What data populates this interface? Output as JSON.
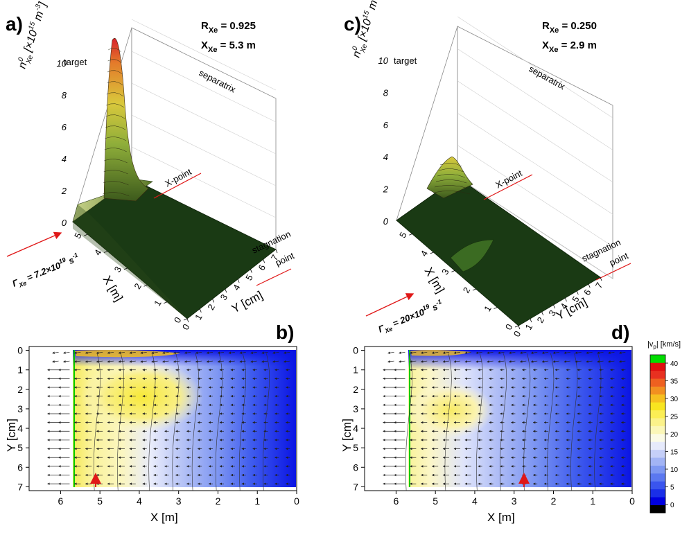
{
  "panels": {
    "a": {
      "label": "a)",
      "zlabel": "n",
      "zlabel_sup": "0",
      "zlabel_sub": "Xe",
      "zlabel_unit": "[×10",
      "zlabel_unit_sup": "15",
      "zlabel_unit2": " m",
      "zlabel_unit_sup2": "-3",
      "zlabel_unit3": "]",
      "param1_name": "R",
      "param1_sub": "Xe",
      "param1_val": " = 0.925",
      "param2_name": "X",
      "param2_sub": "Xe",
      "param2_val": " = 5.3 m",
      "flux_pre": "Γ",
      "flux_sub": "Xe",
      "flux_mid": " = 7.2×10",
      "flux_sup": "19",
      "flux_unit": " s",
      "flux_unit_sup": "-1",
      "target": "target",
      "separatrix": "separatrix",
      "xpoint": "X-point",
      "stag1": "stagnation",
      "stag2": "point",
      "xlabel": "X [m]",
      "ylabel": "Y [cm]"
    },
    "c": {
      "label": "c)",
      "zlabel": "n",
      "zlabel_sup": "0",
      "zlabel_sub": "Xe",
      "zlabel_unit": "[×10",
      "zlabel_unit_sup": "15",
      "zlabel_unit2": " m",
      "zlabel_unit_sup2": "-3",
      "zlabel_unit3": "]",
      "param1_name": "R",
      "param1_sub": "Xe",
      "param1_val": " = 0.250",
      "param2_name": "X",
      "param2_sub": "Xe",
      "param2_val": " = 2.9 m",
      "flux_pre": "Γ",
      "flux_sub": "Xe",
      "flux_mid": " = 20×10",
      "flux_sup": "19",
      "flux_unit": " s",
      "flux_unit_sup": "-1",
      "target": "target",
      "separatrix": "separatrix",
      "xpoint": "X-point",
      "stag1": "stagnation",
      "stag2": "point",
      "xlabel": "X [m]",
      "ylabel": "Y [cm]"
    },
    "b": {
      "label": "b)",
      "xlabel": "X [m]",
      "ylabel": "Y [cm]"
    },
    "d": {
      "label": "d)",
      "xlabel": "X [m]",
      "ylabel": "Y [cm]"
    }
  },
  "colorbar": {
    "title": "|v",
    "title_sub": "p",
    "title_end": "| [km/s]",
    "ticks": [
      "0",
      "5",
      "10",
      "15",
      "20",
      "25",
      "30",
      "35",
      "40"
    ],
    "levels": [
      "#000000",
      "#0000e0",
      "#1a2fe8",
      "#3a55ee",
      "#5b78f0",
      "#7e98f2",
      "#a2b4f5",
      "#c5cff8",
      "#e6eafb",
      "#fbfbe6",
      "#fbf7b8",
      "#fbf28a",
      "#fbee55",
      "#f8e520",
      "#f6c020",
      "#f29020",
      "#ee6020",
      "#e83020",
      "#e01010",
      "#00dd00"
    ]
  },
  "chart_data": [
    {
      "type": "surface3d",
      "panel": "a",
      "zlabel": "n_Xe^0 [×10^15 m^-3]",
      "zlim": [
        0,
        10
      ],
      "zticks": [
        0,
        2,
        4,
        6,
        8,
        10
      ],
      "xlabel": "X [m]",
      "xticks": [
        0,
        1,
        2,
        3,
        4,
        5
      ],
      "ylabel": "Y [cm]",
      "yticks": [
        0,
        1,
        2,
        3,
        4,
        5,
        6,
        7
      ],
      "peak": {
        "x": 5.9,
        "y": 0.2,
        "z": 9.5
      },
      "R_Xe": 0.925,
      "X_Xe_m": 5.3,
      "Gamma_Xe_1e19_per_s": 7.2
    },
    {
      "type": "surface3d",
      "panel": "c",
      "zlabel": "n_Xe^0 [×10^15 m^-3]",
      "zlim": [
        0,
        10
      ],
      "zticks": [
        0,
        2,
        4,
        6,
        8,
        10
      ],
      "xlabel": "X [m]",
      "xticks": [
        0,
        1,
        2,
        3,
        4,
        5
      ],
      "ylabel": "Y [cm]",
      "yticks": [
        0,
        1,
        2,
        3,
        4,
        5,
        6,
        7
      ],
      "peak": {
        "x": 5.9,
        "y": 0.3,
        "z": 4.0
      },
      "R_Xe": 0.25,
      "X_Xe_m": 2.9,
      "Gamma_Xe_1e19_per_s": 20
    },
    {
      "type": "heatmap",
      "panel": "b",
      "xlabel": "X [m]",
      "ylabel": "Y [cm]",
      "xticks": [
        6,
        5,
        4,
        3,
        2,
        1,
        0
      ],
      "yticks": [
        0,
        1,
        2,
        3,
        4,
        5,
        6,
        7
      ],
      "xlim": [
        6.8,
        0
      ],
      "ylim": [
        7.2,
        -0.2
      ],
      "colorbar_label": "|v_p| [km/s]",
      "marker_x": 5.3
    },
    {
      "type": "heatmap",
      "panel": "d",
      "xlabel": "X [m]",
      "ylabel": "Y [cm]",
      "xticks": [
        6,
        5,
        4,
        3,
        2,
        1,
        0
      ],
      "yticks": [
        0,
        1,
        2,
        3,
        4,
        5,
        6,
        7
      ],
      "xlim": [
        6.8,
        0
      ],
      "ylim": [
        7.2,
        -0.2
      ],
      "colorbar_label": "|v_p| [km/s]",
      "marker_x": 2.9
    }
  ]
}
